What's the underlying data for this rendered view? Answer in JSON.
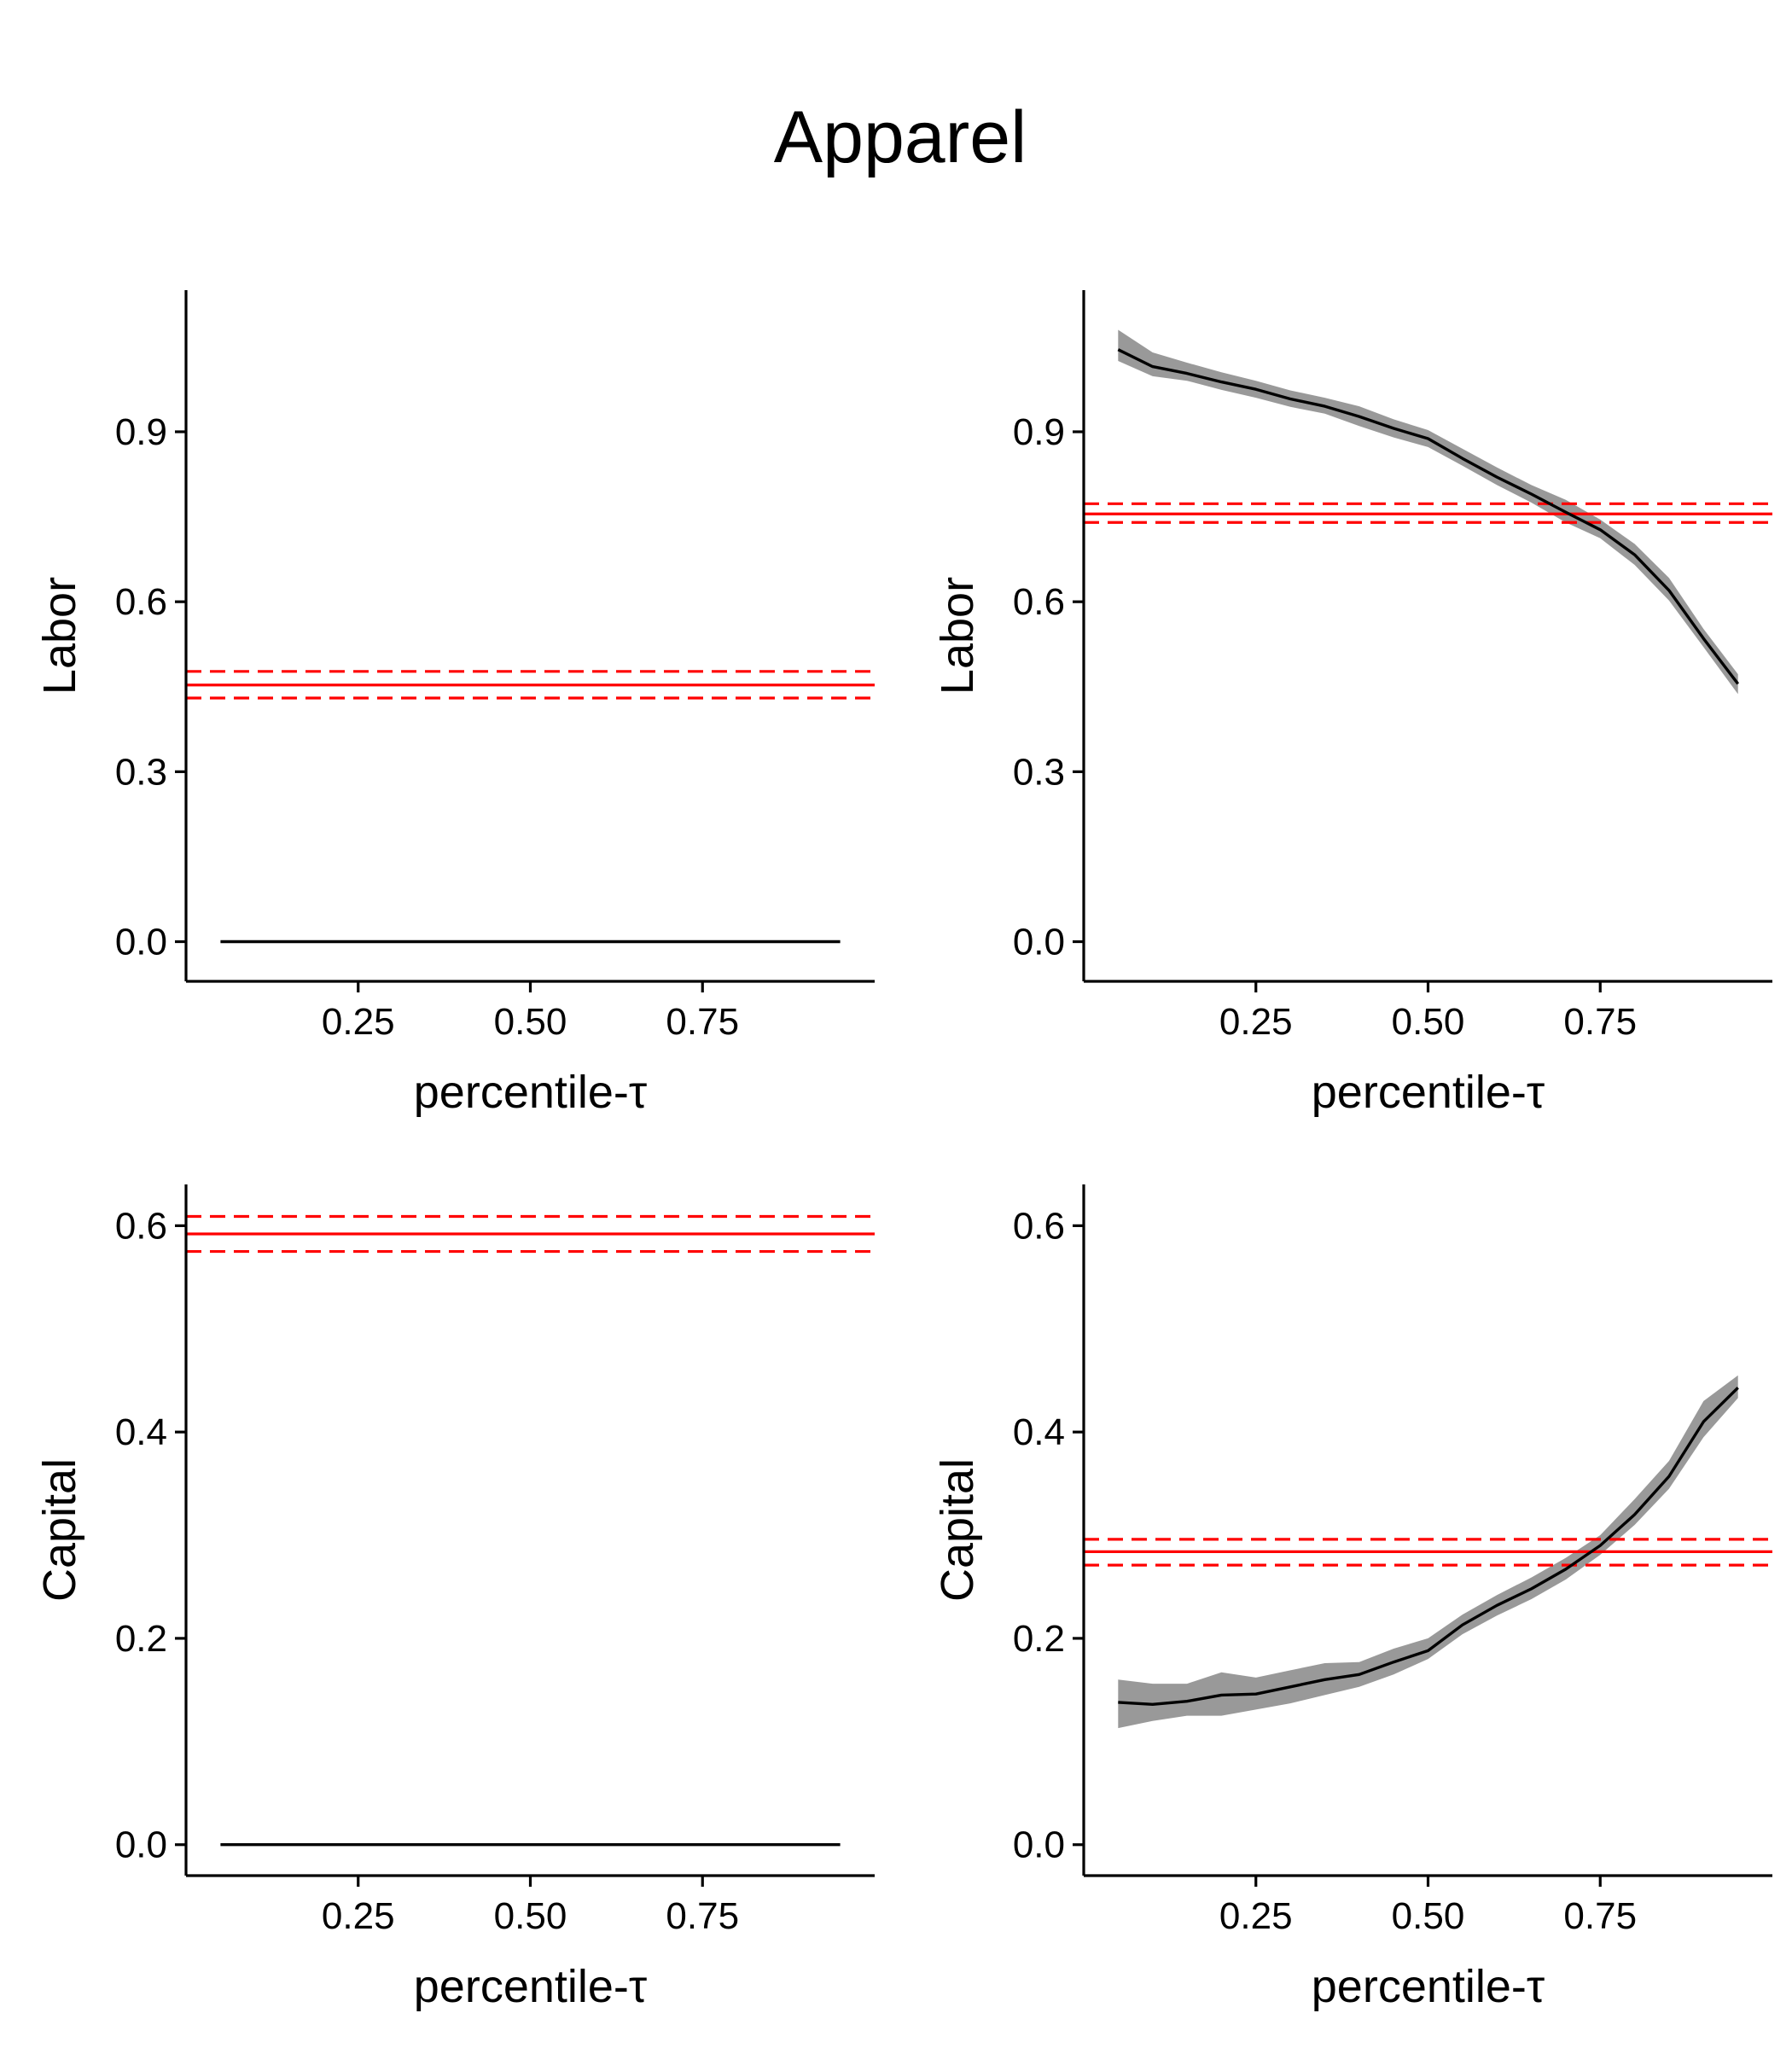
{
  "title": "Apparel",
  "colors": {
    "line": "#000000",
    "band": "#999999",
    "ref": "#ff0000",
    "axis": "#000000"
  },
  "chart_data": [
    {
      "type": "line",
      "xlabel": "percentile-τ",
      "ylabel": "Labor",
      "xlim": [
        0.0,
        1.0
      ],
      "ylim": [
        -0.07,
        1.15
      ],
      "xticks": [
        0.25,
        0.5,
        0.75
      ],
      "xtick_labels": [
        "0.25",
        "0.50",
        "0.75"
      ],
      "yticks": [
        0.0,
        0.3,
        0.6,
        0.9
      ],
      "ytick_labels": [
        "0.0",
        "0.3",
        "0.6",
        "0.9"
      ],
      "series": [
        {
          "x": [
            0.05,
            0.95
          ],
          "y": [
            0.0,
            0.0
          ]
        }
      ],
      "band": null,
      "reference": {
        "estimate": 0.453,
        "lower": 0.43,
        "upper": 0.477
      }
    },
    {
      "type": "line",
      "xlabel": "percentile-τ",
      "ylabel": "Labor",
      "xlim": [
        0.0,
        1.0
      ],
      "ylim": [
        -0.07,
        1.15
      ],
      "xticks": [
        0.25,
        0.5,
        0.75
      ],
      "xtick_labels": [
        "0.25",
        "0.50",
        "0.75"
      ],
      "yticks": [
        0.0,
        0.3,
        0.6,
        0.9
      ],
      "ytick_labels": [
        "0.0",
        "0.3",
        "0.6",
        "0.9"
      ],
      "series": [
        {
          "x": [
            0.05,
            0.1,
            0.15,
            0.2,
            0.25,
            0.3,
            0.35,
            0.4,
            0.45,
            0.5,
            0.55,
            0.6,
            0.65,
            0.7,
            0.75,
            0.8,
            0.85,
            0.9,
            0.95
          ],
          "y": [
            1.045,
            1.015,
            1.003,
            0.988,
            0.975,
            0.958,
            0.945,
            0.927,
            0.906,
            0.888,
            0.853,
            0.82,
            0.79,
            0.758,
            0.727,
            0.683,
            0.62,
            0.535,
            0.455
          ]
        }
      ],
      "band": {
        "x": [
          0.05,
          0.1,
          0.15,
          0.2,
          0.25,
          0.3,
          0.35,
          0.4,
          0.45,
          0.5,
          0.55,
          0.6,
          0.65,
          0.7,
          0.75,
          0.8,
          0.85,
          0.9,
          0.95
        ],
        "lower": [
          1.025,
          0.998,
          0.99,
          0.974,
          0.96,
          0.944,
          0.932,
          0.91,
          0.89,
          0.873,
          0.84,
          0.806,
          0.775,
          0.74,
          0.712,
          0.665,
          0.602,
          0.52,
          0.437
        ],
        "upper": [
          1.08,
          1.04,
          1.022,
          1.005,
          0.99,
          0.973,
          0.96,
          0.945,
          0.922,
          0.903,
          0.87,
          0.837,
          0.806,
          0.78,
          0.745,
          0.702,
          0.642,
          0.552,
          0.472
        ]
      },
      "reference": {
        "estimate": 0.755,
        "lower": 0.74,
        "upper": 0.773
      }
    },
    {
      "type": "line",
      "xlabel": "percentile-τ",
      "ylabel": "Capital",
      "xlim": [
        0.0,
        1.0
      ],
      "ylim": [
        -0.03,
        0.64
      ],
      "xticks": [
        0.25,
        0.5,
        0.75
      ],
      "xtick_labels": [
        "0.25",
        "0.50",
        "0.75"
      ],
      "yticks": [
        0.0,
        0.2,
        0.4,
        0.6
      ],
      "ytick_labels": [
        "0.0",
        "0.2",
        "0.4",
        "0.6"
      ],
      "series": [
        {
          "x": [
            0.05,
            0.95
          ],
          "y": [
            0.0,
            0.0
          ]
        }
      ],
      "band": null,
      "reference": {
        "estimate": 0.592,
        "lower": 0.575,
        "upper": 0.609
      }
    },
    {
      "type": "line",
      "xlabel": "percentile-τ",
      "ylabel": "Capital",
      "xlim": [
        0.0,
        1.0
      ],
      "ylim": [
        -0.03,
        0.64
      ],
      "xticks": [
        0.25,
        0.5,
        0.75
      ],
      "xtick_labels": [
        "0.25",
        "0.50",
        "0.75"
      ],
      "yticks": [
        0.0,
        0.2,
        0.4,
        0.6
      ],
      "ytick_labels": [
        "0.0",
        "0.2",
        "0.4",
        "0.6"
      ],
      "series": [
        {
          "x": [
            0.05,
            0.1,
            0.15,
            0.2,
            0.25,
            0.3,
            0.35,
            0.4,
            0.45,
            0.5,
            0.55,
            0.6,
            0.65,
            0.7,
            0.75,
            0.8,
            0.85,
            0.9,
            0.95
          ],
          "y": [
            0.138,
            0.136,
            0.139,
            0.145,
            0.146,
            0.153,
            0.16,
            0.165,
            0.177,
            0.188,
            0.213,
            0.232,
            0.248,
            0.267,
            0.29,
            0.32,
            0.357,
            0.41,
            0.443
          ]
        }
      ],
      "band": {
        "x": [
          0.05,
          0.1,
          0.15,
          0.2,
          0.25,
          0.3,
          0.35,
          0.4,
          0.45,
          0.5,
          0.55,
          0.6,
          0.65,
          0.7,
          0.75,
          0.8,
          0.85,
          0.9,
          0.95
        ],
        "lower": [
          0.113,
          0.12,
          0.125,
          0.125,
          0.131,
          0.137,
          0.145,
          0.153,
          0.165,
          0.18,
          0.204,
          0.222,
          0.238,
          0.257,
          0.281,
          0.31,
          0.345,
          0.395,
          0.433
        ],
        "upper": [
          0.16,
          0.156,
          0.156,
          0.167,
          0.162,
          0.169,
          0.176,
          0.177,
          0.19,
          0.2,
          0.223,
          0.242,
          0.259,
          0.278,
          0.3,
          0.335,
          0.372,
          0.43,
          0.455
        ]
      },
      "reference": {
        "estimate": 0.284,
        "lower": 0.271,
        "upper": 0.296
      }
    }
  ]
}
